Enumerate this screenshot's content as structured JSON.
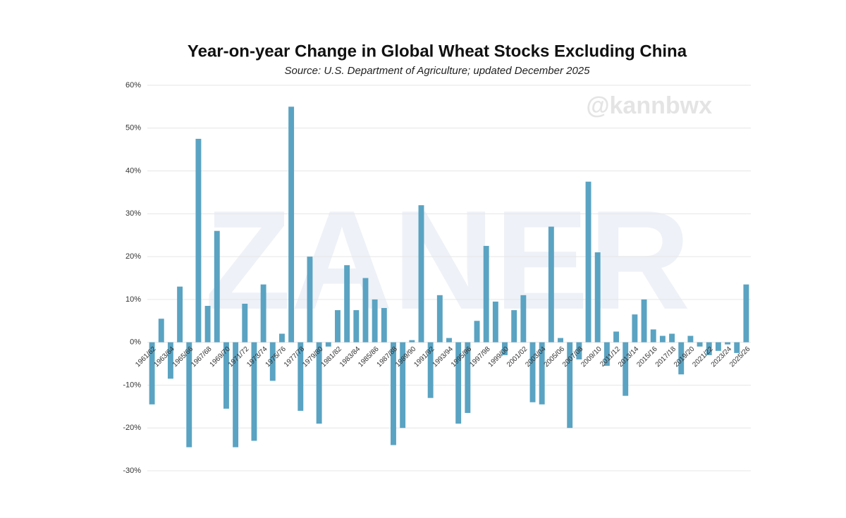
{
  "chart_data": {
    "type": "bar",
    "title": "Year-on-year Change in Global Wheat Stocks Excluding China",
    "subtitle": "Source: U.S. Department of Agriculture; updated December 2025",
    "watermarks": [
      "@kannbwx",
      "ZANER"
    ],
    "categories": [
      "1961/62",
      null,
      "1963/64",
      null,
      "1965/66",
      null,
      "1967/68",
      null,
      "1969/70",
      null,
      "1971/72",
      null,
      "1973/74",
      null,
      "1975/76",
      null,
      "1977/78",
      null,
      "1979/80",
      null,
      "1981/82",
      null,
      "1983/84",
      null,
      "1985/86",
      null,
      "1987/88",
      null,
      "1989/90",
      null,
      "1991/92",
      null,
      "1993/94",
      null,
      "1995/96",
      null,
      "1997/98",
      null,
      "1999/00",
      null,
      "2001/02",
      null,
      "2003/04",
      null,
      "2005/06",
      null,
      "2007/08",
      null,
      "2009/10",
      null,
      "2011/12",
      null,
      "2013/14",
      null,
      "2015/16",
      null,
      "2017/18",
      null,
      "2019/20",
      null,
      "2021/22",
      null,
      "2023/24",
      null,
      "2025/26"
    ],
    "values": [
      -14.5,
      5.5,
      -8.5,
      13,
      -24.5,
      47.5,
      8.5,
      26,
      -15.5,
      -24.5,
      9,
      -23,
      13.5,
      -9,
      2,
      55,
      -16,
      20,
      -19,
      -1,
      7.5,
      18,
      7.5,
      15,
      10,
      8,
      -24,
      -20,
      0.5,
      32,
      -13,
      11,
      1,
      -19,
      -16.5,
      5,
      22.5,
      9.5,
      -3,
      7.5,
      11,
      -14,
      -14.5,
      27,
      1,
      -20,
      -4,
      37.5,
      21,
      -5.5,
      2.5,
      -12.5,
      6.5,
      10,
      3,
      1.5,
      2,
      -7.5,
      1.5,
      -1,
      -3,
      -2,
      -0.5,
      -2.5,
      13.5
    ],
    "color": "#5aa3c2",
    "ylim": [
      -30,
      60
    ],
    "yticks": [
      {
        "value": -30,
        "label": "-30%"
      },
      {
        "value": -20,
        "label": "-20%"
      },
      {
        "value": -10,
        "label": "-10%"
      },
      {
        "value": 0,
        "label": "0%"
      },
      {
        "value": 10,
        "label": "10%"
      },
      {
        "value": 20,
        "label": "20%"
      },
      {
        "value": 30,
        "label": "30%"
      },
      {
        "value": 40,
        "label": "40%"
      },
      {
        "value": 50,
        "label": "50%"
      },
      {
        "value": 60,
        "label": "60%"
      }
    ],
    "grid": true
  }
}
